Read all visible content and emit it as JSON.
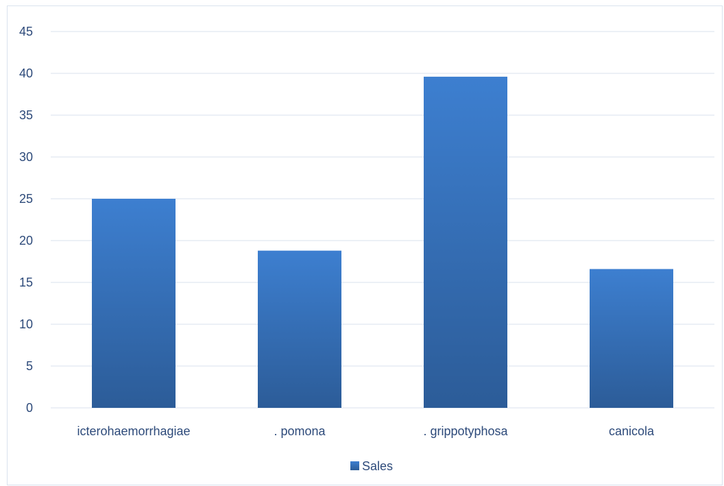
{
  "chart_data": {
    "type": "bar",
    "categories": [
      "icterohaemorrhagiae",
      ". pomona",
      ". grippotyphosa",
      "canicola"
    ],
    "series": [
      {
        "name": "Sales",
        "values": [
          25,
          18.8,
          39.6,
          16.6
        ]
      }
    ],
    "ylim": [
      0,
      45
    ],
    "yticks": [
      0,
      5,
      10,
      15,
      20,
      25,
      30,
      35,
      40,
      45
    ],
    "grid": true,
    "legend_position": "bottom",
    "colors": {
      "bar_top": "#3d7fd0",
      "bar_bottom": "#2c5c98",
      "grid": "#d9e1ec",
      "text": "#2d4a7a"
    }
  }
}
